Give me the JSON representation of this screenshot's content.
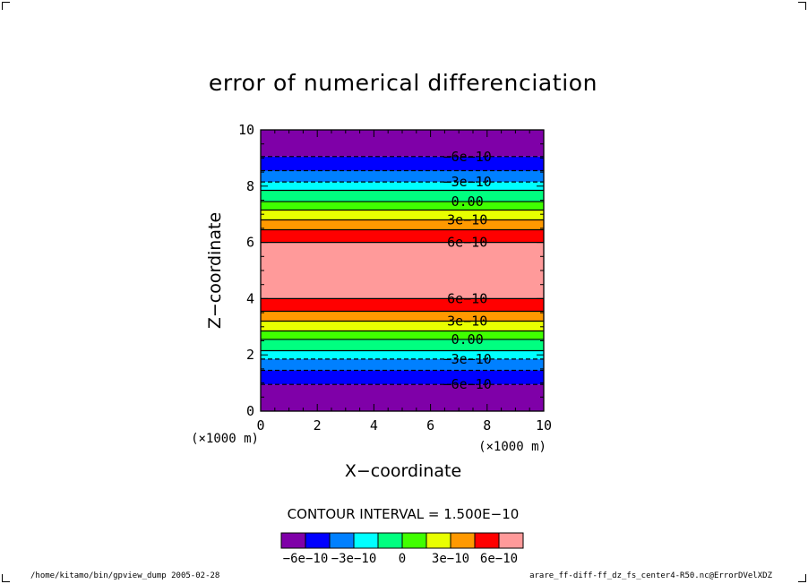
{
  "chart_data": {
    "type": "heatmap",
    "title": "error of numerical differenciation",
    "xlabel": "X−coordinate",
    "ylabel": "Z−coordinate",
    "x_unit": "(×1000 m)",
    "y_unit": "(×1000 m)",
    "xlim": [
      0,
      10
    ],
    "ylim": [
      0,
      10
    ],
    "x_ticks": [
      "0",
      "2",
      "4",
      "6",
      "8",
      "10"
    ],
    "y_ticks": [
      "0",
      "2",
      "4",
      "6",
      "8",
      "10"
    ],
    "contour_interval": "CONTOUR INTERVAL = 1.500E−10",
    "bands": [
      {
        "z0": 0.0,
        "z1": 0.95,
        "color": "#7f00a8"
      },
      {
        "z0": 0.95,
        "z1": 1.45,
        "color": "#0000ff"
      },
      {
        "z0": 1.45,
        "z1": 1.85,
        "color": "#0080ff"
      },
      {
        "z0": 1.85,
        "z1": 2.15,
        "color": "#00ffff"
      },
      {
        "z0": 2.15,
        "z1": 2.55,
        "color": "#00ff80"
      },
      {
        "z0": 2.55,
        "z1": 2.85,
        "color": "#40ff00"
      },
      {
        "z0": 2.85,
        "z1": 3.2,
        "color": "#e8ff00"
      },
      {
        "z0": 3.2,
        "z1": 3.55,
        "color": "#ff9900"
      },
      {
        "z0": 3.55,
        "z1": 4.0,
        "color": "#ff0000"
      },
      {
        "z0": 4.0,
        "z1": 6.0,
        "color": "#ff9a9a"
      },
      {
        "z0": 6.0,
        "z1": 6.45,
        "color": "#ff0000"
      },
      {
        "z0": 6.45,
        "z1": 6.8,
        "color": "#ff9900"
      },
      {
        "z0": 6.8,
        "z1": 7.15,
        "color": "#e8ff00"
      },
      {
        "z0": 7.15,
        "z1": 7.45,
        "color": "#40ff00"
      },
      {
        "z0": 7.45,
        "z1": 7.85,
        "color": "#00ff80"
      },
      {
        "z0": 7.85,
        "z1": 8.15,
        "color": "#00ffff"
      },
      {
        "z0": 8.15,
        "z1": 8.55,
        "color": "#0080ff"
      },
      {
        "z0": 8.55,
        "z1": 9.05,
        "color": "#0000ff"
      },
      {
        "z0": 9.05,
        "z1": 10.0,
        "color": "#7f00a8"
      }
    ],
    "contours": [
      {
        "z": 0.95,
        "dashed": true,
        "label": "−6e−10"
      },
      {
        "z": 1.85,
        "dashed": true,
        "label": "−3e−10"
      },
      {
        "z": 2.55,
        "dashed": false,
        "label": "0.00"
      },
      {
        "z": 3.2,
        "dashed": false,
        "label": "3e−10"
      },
      {
        "z": 4.0,
        "dashed": false,
        "label": "6e−10"
      },
      {
        "z": 6.0,
        "dashed": false,
        "label": "6e−10"
      },
      {
        "z": 6.8,
        "dashed": false,
        "label": "3e−10"
      },
      {
        "z": 7.45,
        "dashed": false,
        "label": "0.00"
      },
      {
        "z": 8.15,
        "dashed": true,
        "label": "−3e−10"
      },
      {
        "z": 9.05,
        "dashed": true,
        "label": "−6e−10"
      },
      {
        "z": 1.45,
        "dashed": true,
        "label": ""
      },
      {
        "z": 2.15,
        "dashed": false,
        "label": ""
      },
      {
        "z": 2.85,
        "dashed": false,
        "label": ""
      },
      {
        "z": 3.55,
        "dashed": false,
        "label": ""
      },
      {
        "z": 6.45,
        "dashed": false,
        "label": ""
      },
      {
        "z": 7.15,
        "dashed": false,
        "label": ""
      },
      {
        "z": 7.85,
        "dashed": false,
        "label": ""
      },
      {
        "z": 8.55,
        "dashed": true,
        "label": ""
      }
    ],
    "colorbar": {
      "colors": [
        "#7f00a8",
        "#0000ff",
        "#0080ff",
        "#00ffff",
        "#00ff80",
        "#40ff00",
        "#e8ff00",
        "#ff9900",
        "#ff0000",
        "#ff9a9a"
      ],
      "labels": [
        "−6e−10",
        "−3e−10",
        "0",
        "3e−10",
        "6e−10"
      ]
    }
  },
  "footer": {
    "left": "/home/kitamo/bin/gpview_dump  2005-02-28",
    "right": "arare_ff-diff-ff_dz_fs_center4-R50.nc@ErrorDVelXDZ"
  }
}
